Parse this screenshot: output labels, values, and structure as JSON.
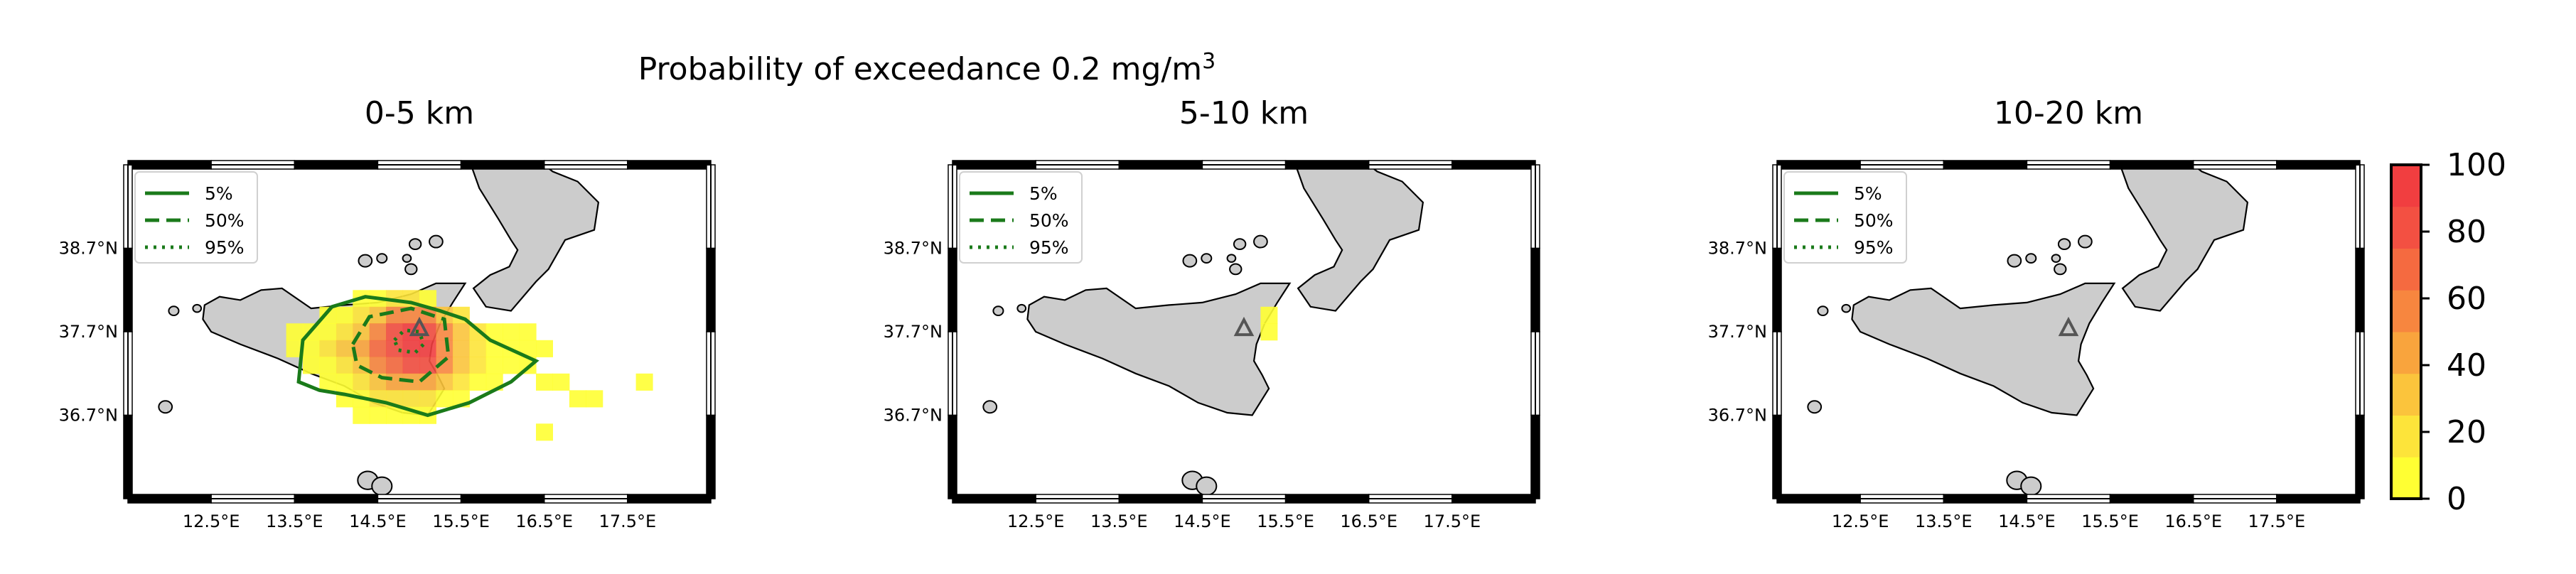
{
  "figure": {
    "suptitle_main": "Probability of exceedance 0.2 mg/m",
    "suptitle_sup": "3"
  },
  "colors": {
    "contour": "#1a7a1a",
    "land": "#cccccc",
    "coast": "#000000",
    "vent_marker": "#555555",
    "colormap": [
      "#ffff33",
      "#fde43a",
      "#fbc43c",
      "#f9a43d",
      "#f7863f",
      "#f56a40",
      "#f35042",
      "#f13e40"
    ]
  },
  "icons": {
    "vent": "triangle-vent-icon"
  },
  "chart_data": [
    {
      "type": "heatmap",
      "title": "0-5 km",
      "xlim": [
        11.5,
        18.5
      ],
      "ylim": [
        35.7,
        39.7
      ],
      "x_ticks": [
        "12.5°E",
        "13.5°E",
        "14.5°E",
        "15.5°E",
        "16.5°E",
        "17.5°E"
      ],
      "y_ticks": [
        "38.7°N",
        "37.7°N",
        "36.7°N"
      ],
      "vent": [
        15.0,
        37.75
      ],
      "legend": [
        "5%",
        "50%",
        "95%"
      ],
      "cell_size": 0.2,
      "cells": [
        [
          13.5,
          37.7,
          5
        ],
        [
          13.5,
          37.5,
          5
        ],
        [
          13.7,
          37.7,
          5
        ],
        [
          13.7,
          37.5,
          10
        ],
        [
          13.7,
          37.3,
          5
        ],
        [
          13.9,
          37.9,
          5
        ],
        [
          13.9,
          37.7,
          10
        ],
        [
          13.9,
          37.5,
          15
        ],
        [
          13.9,
          37.3,
          10
        ],
        [
          13.9,
          37.1,
          5
        ],
        [
          14.1,
          37.9,
          10
        ],
        [
          14.1,
          37.7,
          20
        ],
        [
          14.1,
          37.5,
          25
        ],
        [
          14.1,
          37.3,
          20
        ],
        [
          14.1,
          37.1,
          10
        ],
        [
          14.1,
          36.9,
          5
        ],
        [
          14.3,
          38.1,
          5
        ],
        [
          14.3,
          37.9,
          20
        ],
        [
          14.3,
          37.7,
          35
        ],
        [
          14.3,
          37.5,
          45
        ],
        [
          14.3,
          37.3,
          35
        ],
        [
          14.3,
          37.1,
          20
        ],
        [
          14.3,
          36.9,
          10
        ],
        [
          14.3,
          36.7,
          5
        ],
        [
          14.5,
          38.1,
          10
        ],
        [
          14.5,
          37.9,
          35
        ],
        [
          14.5,
          37.7,
          60
        ],
        [
          14.5,
          37.5,
          70
        ],
        [
          14.5,
          37.3,
          55
        ],
        [
          14.5,
          37.1,
          30
        ],
        [
          14.5,
          36.9,
          15
        ],
        [
          14.5,
          36.7,
          5
        ],
        [
          14.7,
          38.1,
          15
        ],
        [
          14.7,
          37.9,
          50
        ],
        [
          14.7,
          37.7,
          80
        ],
        [
          14.7,
          37.5,
          85
        ],
        [
          14.7,
          37.3,
          70
        ],
        [
          14.7,
          37.1,
          40
        ],
        [
          14.7,
          36.9,
          20
        ],
        [
          14.7,
          36.7,
          8
        ],
        [
          14.9,
          38.1,
          15
        ],
        [
          14.9,
          37.9,
          60
        ],
        [
          14.9,
          37.7,
          95
        ],
        [
          14.9,
          37.5,
          95
        ],
        [
          14.9,
          37.3,
          80
        ],
        [
          14.9,
          37.1,
          45
        ],
        [
          14.9,
          36.9,
          20
        ],
        [
          14.9,
          36.7,
          8
        ],
        [
          15.1,
          38.1,
          10
        ],
        [
          15.1,
          37.9,
          50
        ],
        [
          15.1,
          37.7,
          85
        ],
        [
          15.1,
          37.5,
          90
        ],
        [
          15.1,
          37.3,
          75
        ],
        [
          15.1,
          37.1,
          40
        ],
        [
          15.1,
          36.9,
          15
        ],
        [
          15.1,
          36.7,
          5
        ],
        [
          15.3,
          37.9,
          30
        ],
        [
          15.3,
          37.7,
          55
        ],
        [
          15.3,
          37.5,
          60
        ],
        [
          15.3,
          37.3,
          50
        ],
        [
          15.3,
          37.1,
          25
        ],
        [
          15.3,
          36.9,
          10
        ],
        [
          15.5,
          37.9,
          15
        ],
        [
          15.5,
          37.7,
          30
        ],
        [
          15.5,
          37.5,
          35
        ],
        [
          15.5,
          37.3,
          30
        ],
        [
          15.5,
          37.1,
          15
        ],
        [
          15.5,
          36.9,
          5
        ],
        [
          15.7,
          37.7,
          15
        ],
        [
          15.7,
          37.5,
          20
        ],
        [
          15.7,
          37.3,
          15
        ],
        [
          15.7,
          37.1,
          8
        ],
        [
          15.9,
          37.7,
          8
        ],
        [
          15.9,
          37.5,
          10
        ],
        [
          15.9,
          37.3,
          8
        ],
        [
          15.9,
          37.1,
          5
        ],
        [
          16.1,
          37.7,
          5
        ],
        [
          16.1,
          37.5,
          5
        ],
        [
          16.1,
          37.3,
          5
        ],
        [
          16.3,
          37.7,
          3
        ],
        [
          16.3,
          37.5,
          3
        ],
        [
          16.3,
          37.3,
          3
        ],
        [
          16.5,
          37.5,
          3
        ],
        [
          16.5,
          37.1,
          2
        ],
        [
          16.7,
          37.1,
          2
        ],
        [
          16.9,
          36.9,
          2
        ],
        [
          17.1,
          36.9,
          2
        ],
        [
          16.5,
          36.5,
          2
        ],
        [
          17.7,
          37.1,
          2
        ]
      ]
    },
    {
      "type": "heatmap",
      "title": "5-10 km",
      "xlim": [
        11.5,
        18.5
      ],
      "ylim": [
        35.7,
        39.7
      ],
      "x_ticks": [
        "12.5°E",
        "13.5°E",
        "14.5°E",
        "15.5°E",
        "16.5°E",
        "17.5°E"
      ],
      "y_ticks": [
        "38.7°N",
        "37.7°N",
        "36.7°N"
      ],
      "vent": [
        15.0,
        37.75
      ],
      "legend": [
        "5%",
        "50%",
        "95%"
      ],
      "cell_size": 0.2,
      "cells": [
        [
          15.3,
          37.9,
          2
        ],
        [
          15.3,
          37.7,
          2
        ]
      ]
    },
    {
      "type": "heatmap",
      "title": "10-20 km",
      "xlim": [
        11.5,
        18.5
      ],
      "ylim": [
        35.7,
        39.7
      ],
      "x_ticks": [
        "12.5°E",
        "13.5°E",
        "14.5°E",
        "15.5°E",
        "16.5°E",
        "17.5°E"
      ],
      "y_ticks": [
        "38.7°N",
        "37.7°N",
        "36.7°N"
      ],
      "vent": [
        15.0,
        37.75
      ],
      "legend": [
        "5%",
        "50%",
        "95%"
      ],
      "cell_size": 0.2,
      "cells": []
    }
  ],
  "colorbar": {
    "range": [
      0,
      100
    ],
    "ticks": [
      "100",
      "80",
      "60",
      "40",
      "20",
      "0"
    ]
  }
}
